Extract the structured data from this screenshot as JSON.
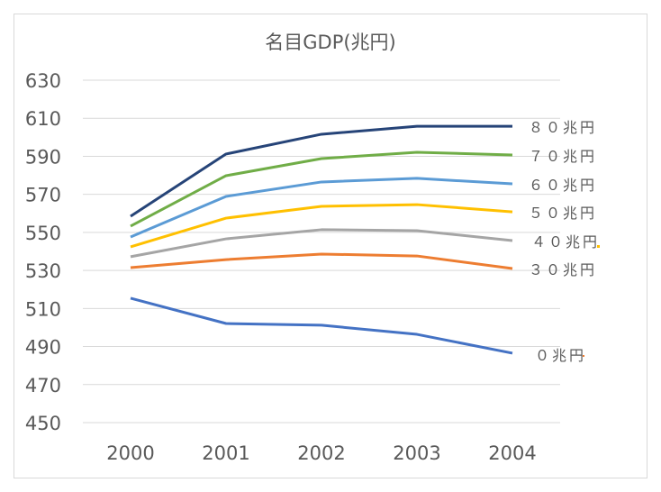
{
  "chart_data": {
    "type": "line",
    "title": "名目GDP(兆円)",
    "xlabel": "",
    "ylabel": "",
    "categories": [
      "2000",
      "2001",
      "2002",
      "2003",
      "2004"
    ],
    "ylim": [
      450,
      630
    ],
    "yticks": [
      "450",
      "470",
      "490",
      "510",
      "530",
      "550",
      "570",
      "590",
      "610",
      "630"
    ],
    "grid": true,
    "series": [
      {
        "name": "８０兆円",
        "color": "#264478",
        "values": [
          558.5,
          591.2,
          601.6,
          605.8,
          605.8
        ]
      },
      {
        "name": "７０兆円",
        "color": "#70ad47",
        "values": [
          553.3,
          579.8,
          588.8,
          592.1,
          590.7
        ]
      },
      {
        "name": "６０兆円",
        "color": "#5b9bd5",
        "values": [
          547.6,
          568.9,
          576.5,
          578.4,
          575.5
        ]
      },
      {
        "name": "５０兆円",
        "color": "#ffc000",
        "values": [
          542.4,
          557.5,
          563.7,
          564.6,
          560.8
        ]
      },
      {
        "name": "４０兆円",
        "color": "#a5a5a5",
        "values": [
          537.2,
          546.6,
          551.4,
          550.9,
          545.7
        ]
      },
      {
        "name": "３０兆円",
        "color": "#ed7d31",
        "values": [
          531.5,
          535.7,
          538.6,
          537.6,
          531.0
        ]
      },
      {
        "name": "０兆円",
        "color": "#4472c4",
        "values": [
          515.4,
          502.1,
          501.2,
          496.4,
          486.5
        ]
      }
    ]
  }
}
